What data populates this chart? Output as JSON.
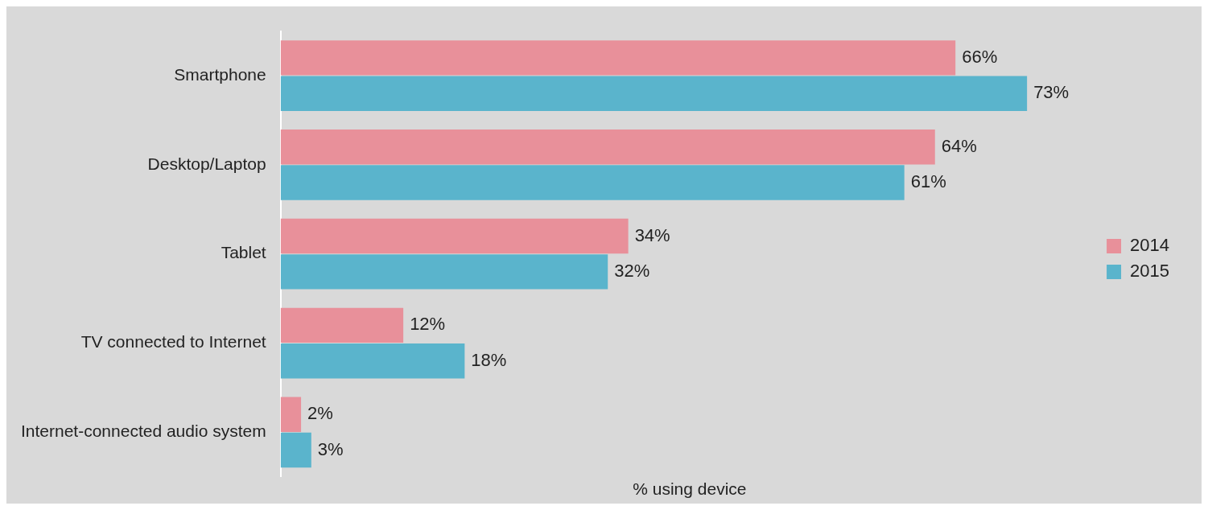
{
  "chart_data": {
    "type": "bar",
    "orientation": "horizontal",
    "xlabel": "% using device",
    "categories": [
      "Smartphone",
      "Desktop/Laptop",
      "Tablet",
      "TV connected to Internet",
      "Internet-connected audio system"
    ],
    "series": [
      {
        "name": "2014",
        "color": "#e8909a",
        "values": [
          66,
          64,
          34,
          12,
          2
        ],
        "value_labels": [
          "66%",
          "64%",
          "34%",
          "12%",
          "2%"
        ]
      },
      {
        "name": "2015",
        "color": "#5ab4cc",
        "values": [
          73,
          61,
          32,
          18,
          3
        ],
        "value_labels": [
          "73%",
          "61%",
          "32%",
          "18%",
          "3%"
        ]
      }
    ],
    "legend": "right",
    "grid": false,
    "tick_labels": "y"
  }
}
